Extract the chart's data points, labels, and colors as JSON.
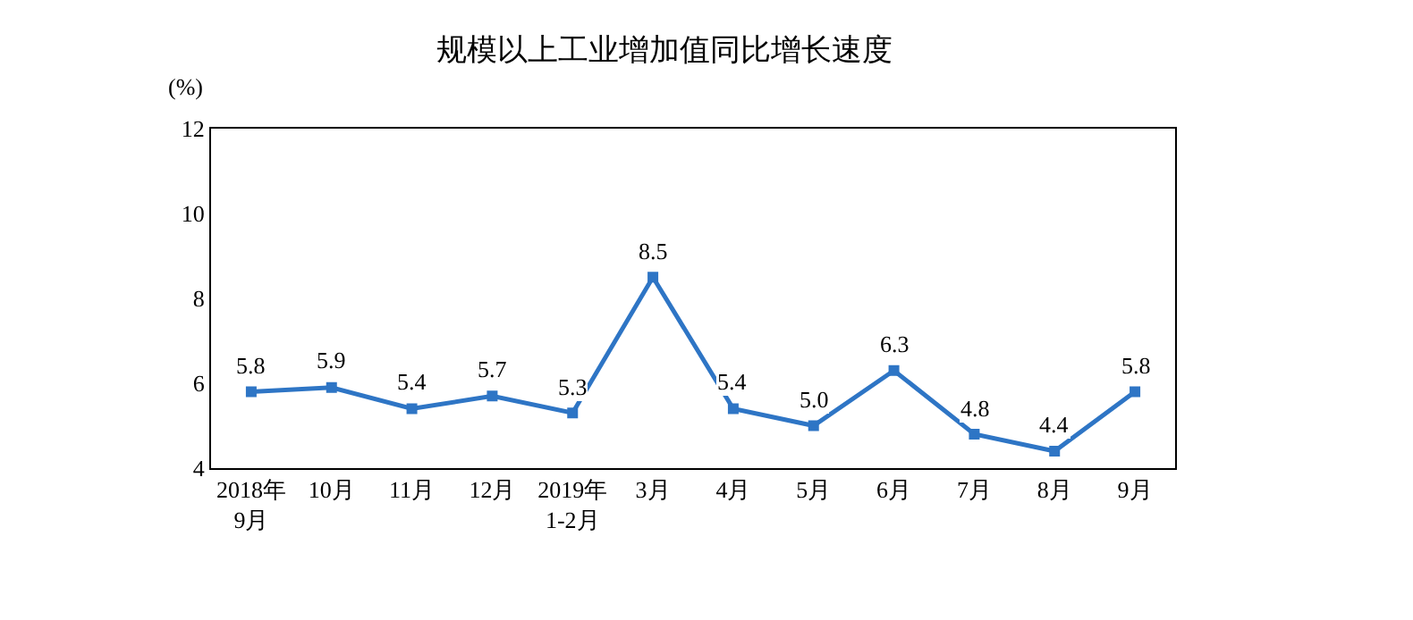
{
  "chart_data": {
    "type": "line",
    "title": "规模以上工业增加值同比增长速度",
    "ylabel": "(%)",
    "categories": [
      "2018年\n9月",
      "10月",
      "11月",
      "12月",
      "2019年\n1-2月",
      "3月",
      "4月",
      "5月",
      "6月",
      "7月",
      "8月",
      "9月"
    ],
    "series": [
      {
        "color": "#2e75c5",
        "values": [
          5.8,
          5.9,
          5.4,
          5.7,
          5.3,
          8.5,
          5.4,
          5.0,
          6.3,
          4.8,
          4.4,
          5.8
        ],
        "value_labels": [
          "5.8",
          "5.9",
          "5.4",
          "5.7",
          "5.3",
          "8.5",
          "5.4",
          "5.0",
          "6.3",
          "4.8",
          "4.4",
          "5.8"
        ]
      }
    ],
    "ylim": [
      4,
      12
    ],
    "yticks": [
      4,
      6,
      8,
      10,
      12
    ],
    "marker": "square",
    "line_style": "solid"
  }
}
